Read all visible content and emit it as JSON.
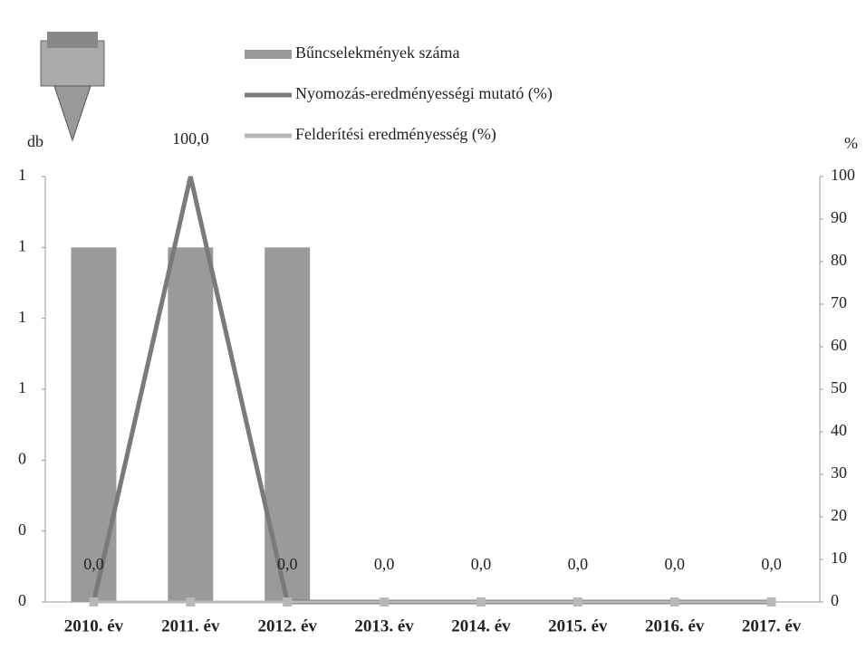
{
  "chart_data": {
    "type": "bar",
    "y_label": "db",
    "y2_label": "%",
    "categories": [
      "2010. év",
      "2011. év",
      "2012. év",
      "2013. év",
      "2014. év",
      "2015. év",
      "2016. év",
      "2017. év"
    ],
    "series": [
      {
        "name": "Bűncselekmények száma",
        "color": "#9a9a9a",
        "type": "bar",
        "values": [
          1,
          1,
          1,
          0,
          0,
          0,
          0,
          0
        ]
      },
      {
        "name": "Nyomozás-eredményességi mutató (%)",
        "color": "#7a7a7a",
        "type": "line",
        "axis": "y2",
        "values": [
          0,
          100,
          0,
          0,
          0,
          0,
          0,
          0
        ],
        "value_labels": [
          "0,0",
          "100,0",
          "0,0",
          "0,0",
          "0,0",
          "0,0",
          "0,0",
          "0,0"
        ]
      },
      {
        "name": "Felderítési eredményesség (%)",
        "color": "#b8b8b8",
        "type": "line",
        "axis": "y2",
        "values": [
          0,
          0,
          0,
          0,
          0,
          0,
          0,
          0
        ]
      }
    ],
    "ylim": [
      0,
      1.2
    ],
    "yticks": [
      {
        "value": 0,
        "label": "0"
      },
      {
        "value": 0.2,
        "label": "0"
      },
      {
        "value": 0.4,
        "label": "0"
      },
      {
        "value": 0.6,
        "label": "1"
      },
      {
        "value": 0.8,
        "label": "1"
      },
      {
        "value": 1.0,
        "label": "1"
      },
      {
        "value": 1.2,
        "label": "1"
      }
    ],
    "y2lim": [
      0,
      100
    ],
    "y2ticks": [
      0,
      10,
      20,
      30,
      40,
      50,
      60,
      70,
      80,
      90,
      100
    ],
    "grid": false
  }
}
